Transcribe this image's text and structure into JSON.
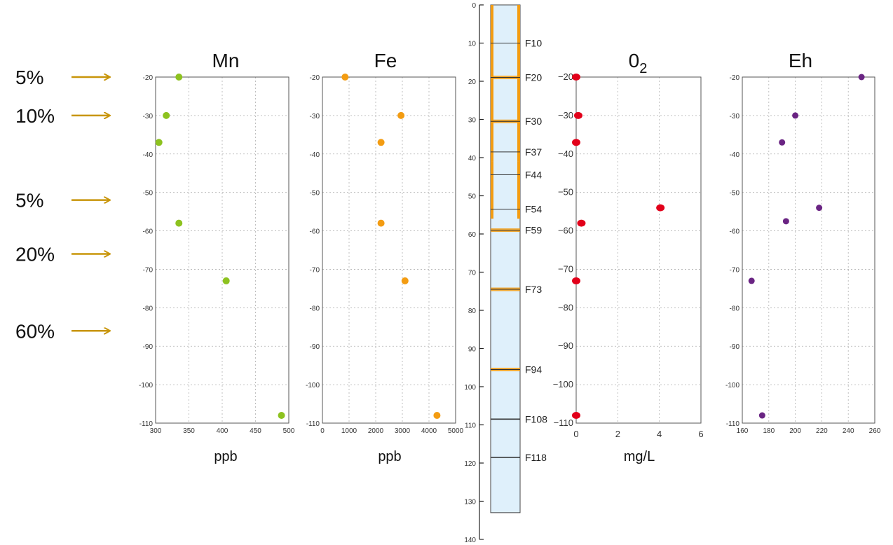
{
  "colors": {
    "arrow": "#c8950a",
    "mn": "#8dc21f",
    "fe": "#f39c12",
    "o2": "#e2001a",
    "eh": "#6a2483",
    "well_fill": "#dff0fb",
    "well_screen": "#f39c12"
  },
  "percent_labels": [
    {
      "text": "5%",
      "depth": -20
    },
    {
      "text": "10%",
      "depth": -30
    },
    {
      "text": "5%",
      "depth": -52
    },
    {
      "text": "20%",
      "depth": -66
    },
    {
      "text": "60%",
      "depth": -86
    }
  ],
  "chart_data": [
    {
      "type": "scatter",
      "title": "Mn",
      "xlabel": "ppb",
      "xlim": [
        300,
        500
      ],
      "ylim": [
        -110,
        -20
      ],
      "xticks": [
        300,
        350,
        400,
        450,
        500
      ],
      "yticks": [
        -20,
        -30,
        -40,
        -50,
        -60,
        -70,
        -80,
        -90,
        -100,
        -110
      ],
      "grid": true,
      "points": [
        {
          "x": 335,
          "y": -20
        },
        {
          "x": 316,
          "y": -30
        },
        {
          "x": 305,
          "y": -37
        },
        {
          "x": 335,
          "y": -58
        },
        {
          "x": 406,
          "y": -73
        },
        {
          "x": 489,
          "y": -108
        }
      ]
    },
    {
      "type": "scatter",
      "title": "Fe",
      "xlabel": "ppb",
      "xlim": [
        0,
        5000
      ],
      "ylim": [
        -110,
        -20
      ],
      "xticks": [
        0,
        1000,
        2000,
        3000,
        4000,
        5000
      ],
      "yticks": [
        -20,
        -30,
        -40,
        -50,
        -60,
        -70,
        -80,
        -90,
        -100,
        -110
      ],
      "grid": true,
      "points": [
        {
          "x": 850,
          "y": -20
        },
        {
          "x": 2950,
          "y": -30
        },
        {
          "x": 2200,
          "y": -37
        },
        {
          "x": 2200,
          "y": -58
        },
        {
          "x": 3100,
          "y": -73
        },
        {
          "x": 4300,
          "y": -108
        }
      ]
    },
    {
      "type": "scatter",
      "title": "0",
      "title_sub": "2",
      "xlabel": "mg/L",
      "xlim": [
        0,
        6
      ],
      "ylim": [
        -110,
        -20
      ],
      "xticks": [
        0,
        2,
        4,
        6
      ],
      "yticks": [
        -20,
        -30,
        -40,
        -50,
        -60,
        -70,
        -80,
        -90,
        -100,
        -110
      ],
      "grid": true,
      "points": [
        {
          "x": 0.0,
          "y": -20
        },
        {
          "x": 0.1,
          "y": -30
        },
        {
          "x": 0.0,
          "y": -37
        },
        {
          "x": 4.05,
          "y": -54
        },
        {
          "x": 0.25,
          "y": -58
        },
        {
          "x": 0.0,
          "y": -73
        },
        {
          "x": 0.0,
          "y": -108
        }
      ]
    },
    {
      "type": "scatter",
      "title": "Eh",
      "xlabel": "",
      "xlim": [
        160,
        260
      ],
      "ylim": [
        -110,
        -20
      ],
      "xticks": [
        160,
        180,
        200,
        220,
        240,
        260
      ],
      "yticks": [
        -20,
        -30,
        -40,
        -50,
        -60,
        -70,
        -80,
        -90,
        -100,
        -110
      ],
      "grid": true,
      "points": [
        {
          "x": 250,
          "y": -20
        },
        {
          "x": 200,
          "y": -30
        },
        {
          "x": 190,
          "y": -37
        },
        {
          "x": 218,
          "y": -54
        },
        {
          "x": 193,
          "y": -57.5
        },
        {
          "x": 167,
          "y": -73
        },
        {
          "x": 175,
          "y": -108
        }
      ]
    }
  ],
  "well": {
    "depth_ticks": [
      0,
      10,
      20,
      30,
      40,
      50,
      60,
      70,
      80,
      90,
      100,
      110,
      120,
      130,
      140
    ],
    "bottom_depth": 133,
    "levels": [
      {
        "label": "F10",
        "depth": 10,
        "screen": false
      },
      {
        "label": "F20",
        "depth": 19,
        "screen": true
      },
      {
        "label": "F30",
        "depth": 30.5,
        "screen": true
      },
      {
        "label": "F37",
        "depth": 38.5,
        "screen": false
      },
      {
        "label": "F44",
        "depth": 44.5,
        "screen": false
      },
      {
        "label": "F54",
        "depth": 53.5,
        "screen": false
      },
      {
        "label": "F59",
        "depth": 59,
        "screen": true
      },
      {
        "label": "F73",
        "depth": 74.5,
        "screen": true
      },
      {
        "label": "F94",
        "depth": 95.5,
        "screen": true
      },
      {
        "label": "F108",
        "depth": 108.5,
        "screen": false
      },
      {
        "label": "F118",
        "depth": 118.5,
        "screen": false
      }
    ]
  }
}
